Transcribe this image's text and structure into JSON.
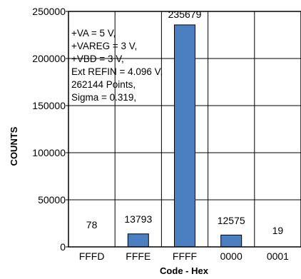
{
  "chart_data": {
    "type": "bar",
    "categories": [
      "FFFD",
      "FFFE",
      "FFFF",
      "0000",
      "0001"
    ],
    "values": [
      78,
      13793,
      235679,
      12575,
      19
    ],
    "data_labels": [
      "78",
      "13793",
      "235679",
      "12575",
      "19"
    ],
    "xlabel": "Code - Hex",
    "ylabel": "COUNTS",
    "ylim": [
      0,
      250000
    ],
    "yticks": [
      0,
      50000,
      100000,
      150000,
      200000,
      250000
    ],
    "ytick_labels": [
      "0",
      "50000",
      "100000",
      "150000",
      "200000",
      "250000"
    ],
    "grid": true,
    "bar_color": "#4a7fc1",
    "annotation_lines": [
      "+VA = 5 V,",
      "+VAREG = 3 V,",
      "+VBD = 3 V,",
      "Ext REFIN = 4.096 V,",
      "262144 Points,",
      "Sigma = 0.319,"
    ]
  }
}
